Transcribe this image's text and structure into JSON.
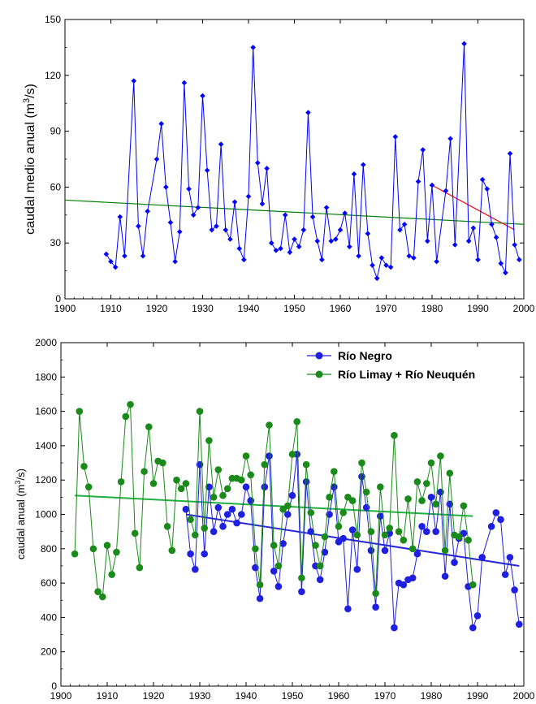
{
  "chart_data": [
    {
      "type": "line",
      "ylabel": "caudal medio anual (m",
      "ylabel_unit_sup": "3",
      "ylabel_tail": "/s)",
      "xlim": [
        1900,
        2000
      ],
      "ylim": [
        0,
        150
      ],
      "xticks": [
        1900,
        1910,
        1920,
        1930,
        1940,
        1950,
        1960,
        1970,
        1980,
        1990,
        2000
      ],
      "yticks": [
        0,
        30,
        60,
        90,
        120,
        150
      ],
      "grid": false,
      "series": [
        {
          "color": "#0000ff",
          "marker": "diamond",
          "x": [
            1909,
            1910,
            1911,
            1912,
            1913,
            1915,
            1916,
            1917,
            1918,
            1920,
            1921,
            1922,
            1923,
            1924,
            1925,
            1926,
            1927,
            1928,
            1929,
            1930,
            1931,
            1932,
            1933,
            1934,
            1935,
            1936,
            1937,
            1938,
            1939,
            1940,
            1941,
            1942,
            1943,
            1944,
            1945,
            1946,
            1947,
            1948,
            1949,
            1950,
            1951,
            1952,
            1953,
            1954,
            1955,
            1956,
            1957,
            1958,
            1959,
            1960,
            1961,
            1962,
            1963,
            1964,
            1965,
            1966,
            1967,
            1968,
            1969,
            1970,
            1971,
            1972,
            1973,
            1974,
            1975,
            1976,
            1977,
            1978,
            1979,
            1980,
            1981,
            1983,
            1984,
            1985,
            1987,
            1988,
            1989,
            1990,
            1991,
            1992,
            1993,
            1994,
            1995,
            1996,
            1997,
            1998,
            1999
          ],
          "y": [
            24,
            20,
            17,
            44,
            23,
            117,
            39,
            23,
            47,
            75,
            94,
            60,
            41,
            20,
            36,
            116,
            59,
            45,
            49,
            109,
            69,
            37,
            39,
            83,
            37,
            32,
            52,
            27,
            21,
            55,
            135,
            73,
            51,
            70,
            30,
            26,
            27,
            45,
            25,
            32,
            28,
            37,
            100,
            44,
            31,
            21,
            49,
            31,
            32,
            37,
            46,
            28,
            67,
            23,
            72,
            35,
            18,
            11,
            22,
            18,
            17,
            87,
            37,
            40,
            23,
            22,
            63,
            80,
            31,
            61,
            20,
            58,
            86,
            29,
            137,
            31,
            38,
            21,
            64,
            59,
            40,
            33,
            19,
            14,
            78,
            29,
            21
          ]
        }
      ],
      "trendlines": [
        {
          "color": "#008000",
          "x": [
            1900,
            2000
          ],
          "y": [
            53,
            40
          ]
        },
        {
          "color": "#ff0000",
          "x": [
            1980,
            1998
          ],
          "y": [
            61,
            37
          ]
        }
      ]
    },
    {
      "type": "line",
      "ylabel": "caudal anual (m",
      "ylabel_unit_sup": "3",
      "ylabel_tail": "/s)",
      "xlim": [
        1900,
        2000
      ],
      "ylim": [
        0,
        2000
      ],
      "xticks": [
        1900,
        1910,
        1920,
        1930,
        1940,
        1950,
        1960,
        1970,
        1980,
        1990,
        2000
      ],
      "yticks": [
        0,
        200,
        400,
        600,
        800,
        1000,
        1200,
        1400,
        1600,
        1800,
        2000
      ],
      "grid": false,
      "legend_position": "top-right",
      "series": [
        {
          "name": "Río Negro",
          "color": "#1f1fe0",
          "marker": "circle",
          "x": [
            1927,
            1928,
            1929,
            1930,
            1931,
            1932,
            1933,
            1934,
            1935,
            1936,
            1937,
            1938,
            1939,
            1940,
            1941,
            1942,
            1943,
            1944,
            1945,
            1946,
            1947,
            1948,
            1949,
            1950,
            1951,
            1952,
            1953,
            1954,
            1955,
            1956,
            1957,
            1958,
            1959,
            1960,
            1961,
            1962,
            1963,
            1964,
            1965,
            1966,
            1967,
            1968,
            1969,
            1970,
            1971,
            1972,
            1973,
            1974,
            1975,
            1976,
            1977,
            1978,
            1979,
            1980,
            1981,
            1982,
            1983,
            1984,
            1985,
            1986,
            1987,
            1988,
            1989,
            1990,
            1991,
            1993,
            1994,
            1995,
            1996,
            1997,
            1998,
            1999
          ],
          "y": [
            1030,
            770,
            680,
            1290,
            770,
            1160,
            900,
            1040,
            930,
            1000,
            1030,
            950,
            1000,
            1160,
            1080,
            690,
            510,
            1160,
            1340,
            670,
            580,
            830,
            1000,
            1110,
            1350,
            550,
            1190,
            900,
            700,
            620,
            780,
            1000,
            1160,
            840,
            860,
            450,
            910,
            680,
            1220,
            1040,
            790,
            460,
            990,
            790,
            890,
            340,
            600,
            590,
            620,
            630,
            770,
            930,
            900,
            1100,
            900,
            1130,
            640,
            1060,
            720,
            860,
            890,
            580,
            340,
            410,
            750,
            930,
            1010,
            970,
            650,
            750,
            560,
            360
          ]
        },
        {
          "name": "Río Limay + Río Neuquén",
          "color": "#1a8a1a",
          "marker": "circle",
          "x": [
            1903,
            1904,
            1905,
            1906,
            1907,
            1908,
            1909,
            1910,
            1911,
            1912,
            1913,
            1914,
            1915,
            1916,
            1917,
            1918,
            1919,
            1920,
            1921,
            1922,
            1923,
            1924,
            1925,
            1926,
            1927,
            1928,
            1929,
            1930,
            1931,
            1932,
            1933,
            1934,
            1935,
            1936,
            1937,
            1938,
            1939,
            1940,
            1941,
            1942,
            1943,
            1944,
            1945,
            1946,
            1947,
            1948,
            1949,
            1950,
            1951,
            1952,
            1953,
            1954,
            1955,
            1956,
            1957,
            1958,
            1959,
            1960,
            1961,
            1962,
            1963,
            1964,
            1965,
            1966,
            1967,
            1968,
            1969,
            1970,
            1971,
            1972,
            1973,
            1974,
            1975,
            1976,
            1977,
            1978,
            1979,
            1980,
            1981,
            1982,
            1983,
            1984,
            1985,
            1986,
            1987,
            1988,
            1989
          ],
          "y": [
            770,
            1600,
            1280,
            1160,
            800,
            550,
            520,
            820,
            650,
            780,
            1190,
            1570,
            1640,
            890,
            690,
            1250,
            1510,
            1180,
            1310,
            1300,
            930,
            790,
            1200,
            1150,
            1180,
            970,
            880,
            1600,
            920,
            1430,
            1100,
            1260,
            1110,
            1150,
            1210,
            1210,
            1200,
            1340,
            1230,
            800,
            590,
            1290,
            1520,
            820,
            700,
            1030,
            1050,
            1350,
            1540,
            630,
            1290,
            1010,
            820,
            700,
            870,
            1100,
            1250,
            930,
            1010,
            1100,
            1080,
            880,
            1300,
            1130,
            900,
            540,
            1160,
            880,
            920,
            1460,
            900,
            850,
            1090,
            800,
            1190,
            1080,
            1180,
            1300,
            1060,
            1340,
            790,
            1240,
            880,
            870,
            1050,
            850,
            590
          ]
        }
      ],
      "trendlines": [
        {
          "color": "#2828d8",
          "x": [
            1927,
            1999
          ],
          "y": [
            1000,
            700
          ]
        },
        {
          "color": "#20b040",
          "x": [
            1903,
            1989
          ],
          "y": [
            1110,
            990
          ]
        }
      ]
    }
  ]
}
